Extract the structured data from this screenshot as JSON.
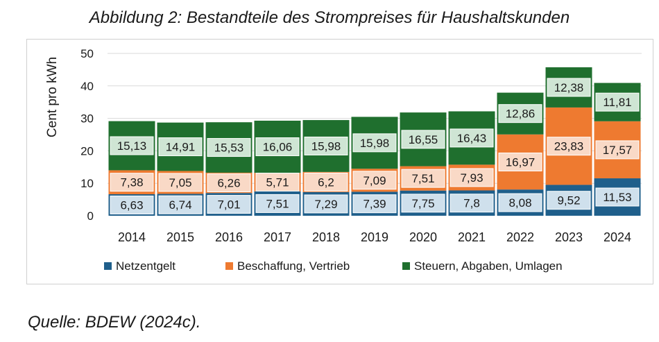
{
  "title": "Abbildung 2: Bestandteile des Strompreises für Haushaltskunden",
  "source": "Quelle: BDEW (2024c).",
  "colors": {
    "netzentgelt": "#1f5f8b",
    "beschaffung": "#ee7a30",
    "steuern": "#1f6f2e"
  },
  "chart_data": {
    "type": "bar",
    "stacked": true,
    "ylabel": "Cent pro kWh",
    "ylim": [
      0,
      50
    ],
    "yticks": [
      0,
      10,
      20,
      30,
      40,
      50
    ],
    "grid": true,
    "legend_position": "bottom",
    "categories": [
      "2014",
      "2015",
      "2016",
      "2017",
      "2018",
      "2019",
      "2020",
      "2021",
      "2022",
      "2023",
      "2024"
    ],
    "series": [
      {
        "name": "Netzentgelt",
        "values": [
          6.63,
          6.74,
          7.01,
          7.51,
          7.29,
          7.39,
          7.75,
          7.8,
          8.08,
          9.52,
          11.53
        ]
      },
      {
        "name": "Beschaffung, Vertrieb",
        "values": [
          7.38,
          7.05,
          6.26,
          5.71,
          6.2,
          7.09,
          7.51,
          7.93,
          16.97,
          23.83,
          17.57
        ]
      },
      {
        "name": "Steuern, Abgaben, Umlagen",
        "values": [
          15.13,
          14.91,
          15.53,
          16.06,
          15.98,
          15.98,
          16.55,
          16.43,
          12.86,
          12.38,
          11.81
        ]
      }
    ],
    "data_labels": [
      [
        "6,63",
        "6,74",
        "7,01",
        "7,51",
        "7,29",
        "7,39",
        "7,75",
        "7,8",
        "8,08",
        "9,52",
        "11,53"
      ],
      [
        "7,38",
        "7,05",
        "6,26",
        "5,71",
        "6,2",
        "7,09",
        "7,51",
        "7,93",
        "16,97",
        "23,83",
        "17,57"
      ],
      [
        "15,13",
        "14,91",
        "15,53",
        "16,06",
        "15,98",
        "15,98",
        "16,55",
        "16,43",
        "12,86",
        "12,38",
        "11,81"
      ]
    ]
  }
}
